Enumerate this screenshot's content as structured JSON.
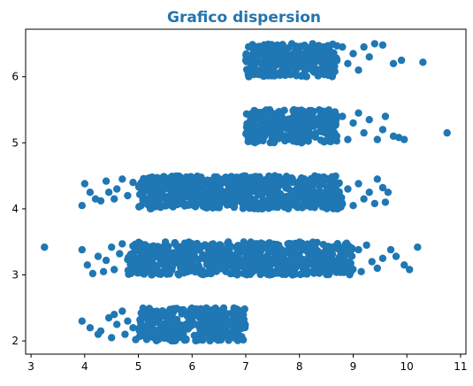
{
  "chart_data": {
    "type": "scatter",
    "title": "Grafico dispersion",
    "title_color": "#2475ae",
    "marker_color": "#1f77b4",
    "xlim": [
      2.9,
      11.1
    ],
    "ylim": [
      1.8,
      6.72
    ],
    "x_ticks": [
      3,
      4,
      5,
      6,
      7,
      8,
      9,
      10,
      11
    ],
    "y_ticks": [
      2,
      3,
      4,
      5,
      6
    ],
    "grid": false,
    "legend": "none",
    "bands": [
      {
        "y_range": [
          2.0,
          2.5
        ],
        "dense_x_range": [
          5.0,
          7.0
        ],
        "points": [
          [
            3.95,
            2.3
          ],
          [
            4.1,
            2.2
          ],
          [
            4.25,
            2.1
          ],
          [
            4.3,
            2.15
          ],
          [
            4.45,
            2.35
          ],
          [
            4.5,
            2.05
          ],
          [
            4.55,
            2.4
          ],
          [
            4.6,
            2.25
          ],
          [
            4.7,
            2.45
          ],
          [
            4.75,
            2.1
          ],
          [
            4.8,
            2.3
          ],
          [
            4.9,
            2.2
          ],
          [
            4.95,
            2.02
          ]
        ]
      },
      {
        "y_range": [
          3.0,
          3.5
        ],
        "dense_x_range": [
          4.8,
          9.0
        ],
        "points": [
          [
            3.25,
            3.42
          ],
          [
            3.95,
            3.38
          ],
          [
            4.05,
            3.15
          ],
          [
            4.15,
            3.02
          ],
          [
            4.25,
            3.28
          ],
          [
            4.35,
            3.05
          ],
          [
            4.4,
            3.22
          ],
          [
            4.5,
            3.42
          ],
          [
            4.55,
            3.08
          ],
          [
            4.65,
            3.32
          ],
          [
            4.7,
            3.47
          ],
          [
            9.1,
            3.38
          ],
          [
            9.15,
            3.05
          ],
          [
            9.25,
            3.45
          ],
          [
            9.35,
            3.2
          ],
          [
            9.45,
            3.1
          ],
          [
            9.55,
            3.25
          ],
          [
            9.7,
            3.38
          ],
          [
            9.8,
            3.28
          ],
          [
            9.95,
            3.15
          ],
          [
            10.05,
            3.08
          ],
          [
            10.2,
            3.42
          ]
        ]
      },
      {
        "y_range": [
          4.0,
          4.5
        ],
        "dense_x_range": [
          5.0,
          8.8
        ],
        "points": [
          [
            3.95,
            4.05
          ],
          [
            4.0,
            4.38
          ],
          [
            4.1,
            4.25
          ],
          [
            4.2,
            4.15
          ],
          [
            4.3,
            4.12
          ],
          [
            4.4,
            4.42
          ],
          [
            4.45,
            4.25
          ],
          [
            4.55,
            4.15
          ],
          [
            4.6,
            4.3
          ],
          [
            4.7,
            4.45
          ],
          [
            4.8,
            4.2
          ],
          [
            4.9,
            4.4
          ],
          [
            8.9,
            4.3
          ],
          [
            9.0,
            4.05
          ],
          [
            9.1,
            4.38
          ],
          [
            9.2,
            4.15
          ],
          [
            9.3,
            4.25
          ],
          [
            9.4,
            4.08
          ],
          [
            9.45,
            4.45
          ],
          [
            9.55,
            4.32
          ],
          [
            9.6,
            4.1
          ],
          [
            9.65,
            4.25
          ]
        ]
      },
      {
        "y_range": [
          5.0,
          5.5
        ],
        "dense_x_range": [
          7.0,
          8.7
        ],
        "points": [
          [
            8.8,
            5.4
          ],
          [
            8.9,
            5.05
          ],
          [
            9.0,
            5.3
          ],
          [
            9.1,
            5.45
          ],
          [
            9.2,
            5.15
          ],
          [
            9.3,
            5.35
          ],
          [
            9.45,
            5.05
          ],
          [
            9.55,
            5.2
          ],
          [
            9.6,
            5.4
          ],
          [
            9.75,
            5.1
          ],
          [
            9.85,
            5.08
          ],
          [
            9.95,
            5.05
          ],
          [
            10.75,
            5.15
          ]
        ]
      },
      {
        "y_range": [
          6.0,
          6.5
        ],
        "dense_x_range": [
          7.0,
          8.7
        ],
        "points": [
          [
            8.8,
            6.45
          ],
          [
            8.9,
            6.2
          ],
          [
            9.0,
            6.35
          ],
          [
            9.1,
            6.1
          ],
          [
            9.2,
            6.45
          ],
          [
            9.3,
            6.3
          ],
          [
            9.4,
            6.5
          ],
          [
            9.55,
            6.48
          ],
          [
            9.75,
            6.2
          ],
          [
            9.9,
            6.25
          ],
          [
            10.3,
            6.22
          ]
        ]
      }
    ]
  }
}
